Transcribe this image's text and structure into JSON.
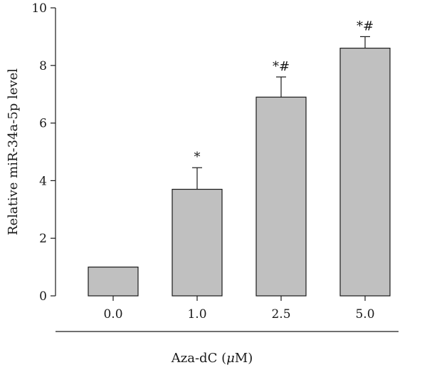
{
  "chart_data": {
    "type": "bar",
    "title": "",
    "xlabel": "Aza-dC (μM)",
    "xlabel_prefix": "Aza-dC (",
    "xlabel_unit": "μ",
    "xlabel_suffix": "M)",
    "ylabel": "Relative miR-34a-5p level",
    "ylim": [
      0,
      10
    ],
    "yticks": [
      0,
      2,
      4,
      6,
      8,
      10
    ],
    "categories": [
      "0.0",
      "1.0",
      "2.5",
      "5.0"
    ],
    "values": [
      1.0,
      3.7,
      6.9,
      8.6
    ],
    "errors": [
      0,
      0.75,
      0.7,
      0.4
    ],
    "annotations": [
      "",
      "*",
      "*#",
      "*#"
    ],
    "bar_color": "#c0c0c0",
    "grid": false,
    "legend": "none"
  }
}
